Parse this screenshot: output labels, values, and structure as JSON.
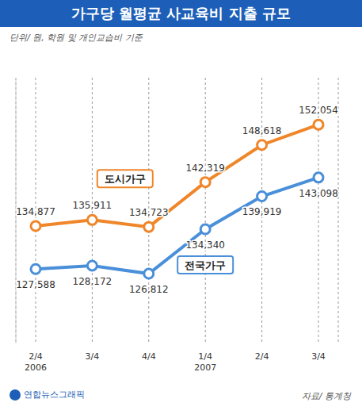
{
  "chart_data": {
    "type": "line",
    "title": "가구당 월평균 사교육비 지출 규모",
    "subtitle": "단위/ 원, 학원 및 개인교습비 기준",
    "source": "자료/ 통계청",
    "annotations": [
      "연합뉴스그래픽"
    ],
    "categories": [
      "2/4 2006",
      "3/4",
      "4/4",
      "1/4 2007",
      "2/4",
      "3/4"
    ],
    "series": [
      {
        "name": "도시가구",
        "color": "#f0862a",
        "values": [
          134877,
          135911,
          134723,
          142319,
          148618,
          152054
        ],
        "value_labels": [
          "134,877",
          "135,911",
          "134,723",
          "142,319",
          "148,618",
          "152,054"
        ],
        "marker": "circle"
      },
      {
        "name": "전국가구",
        "color": "#4a8fd9",
        "values": [
          127588,
          128172,
          126812,
          134340,
          139919,
          143098
        ],
        "value_labels": [
          "127,588",
          "128,172",
          "126,812",
          "134,340",
          "139,919",
          "143,098"
        ],
        "marker": "circle"
      }
    ],
    "ylim": [
      115000,
      160000
    ],
    "grid": true,
    "data_labels": true,
    "tick_labels": "x"
  }
}
